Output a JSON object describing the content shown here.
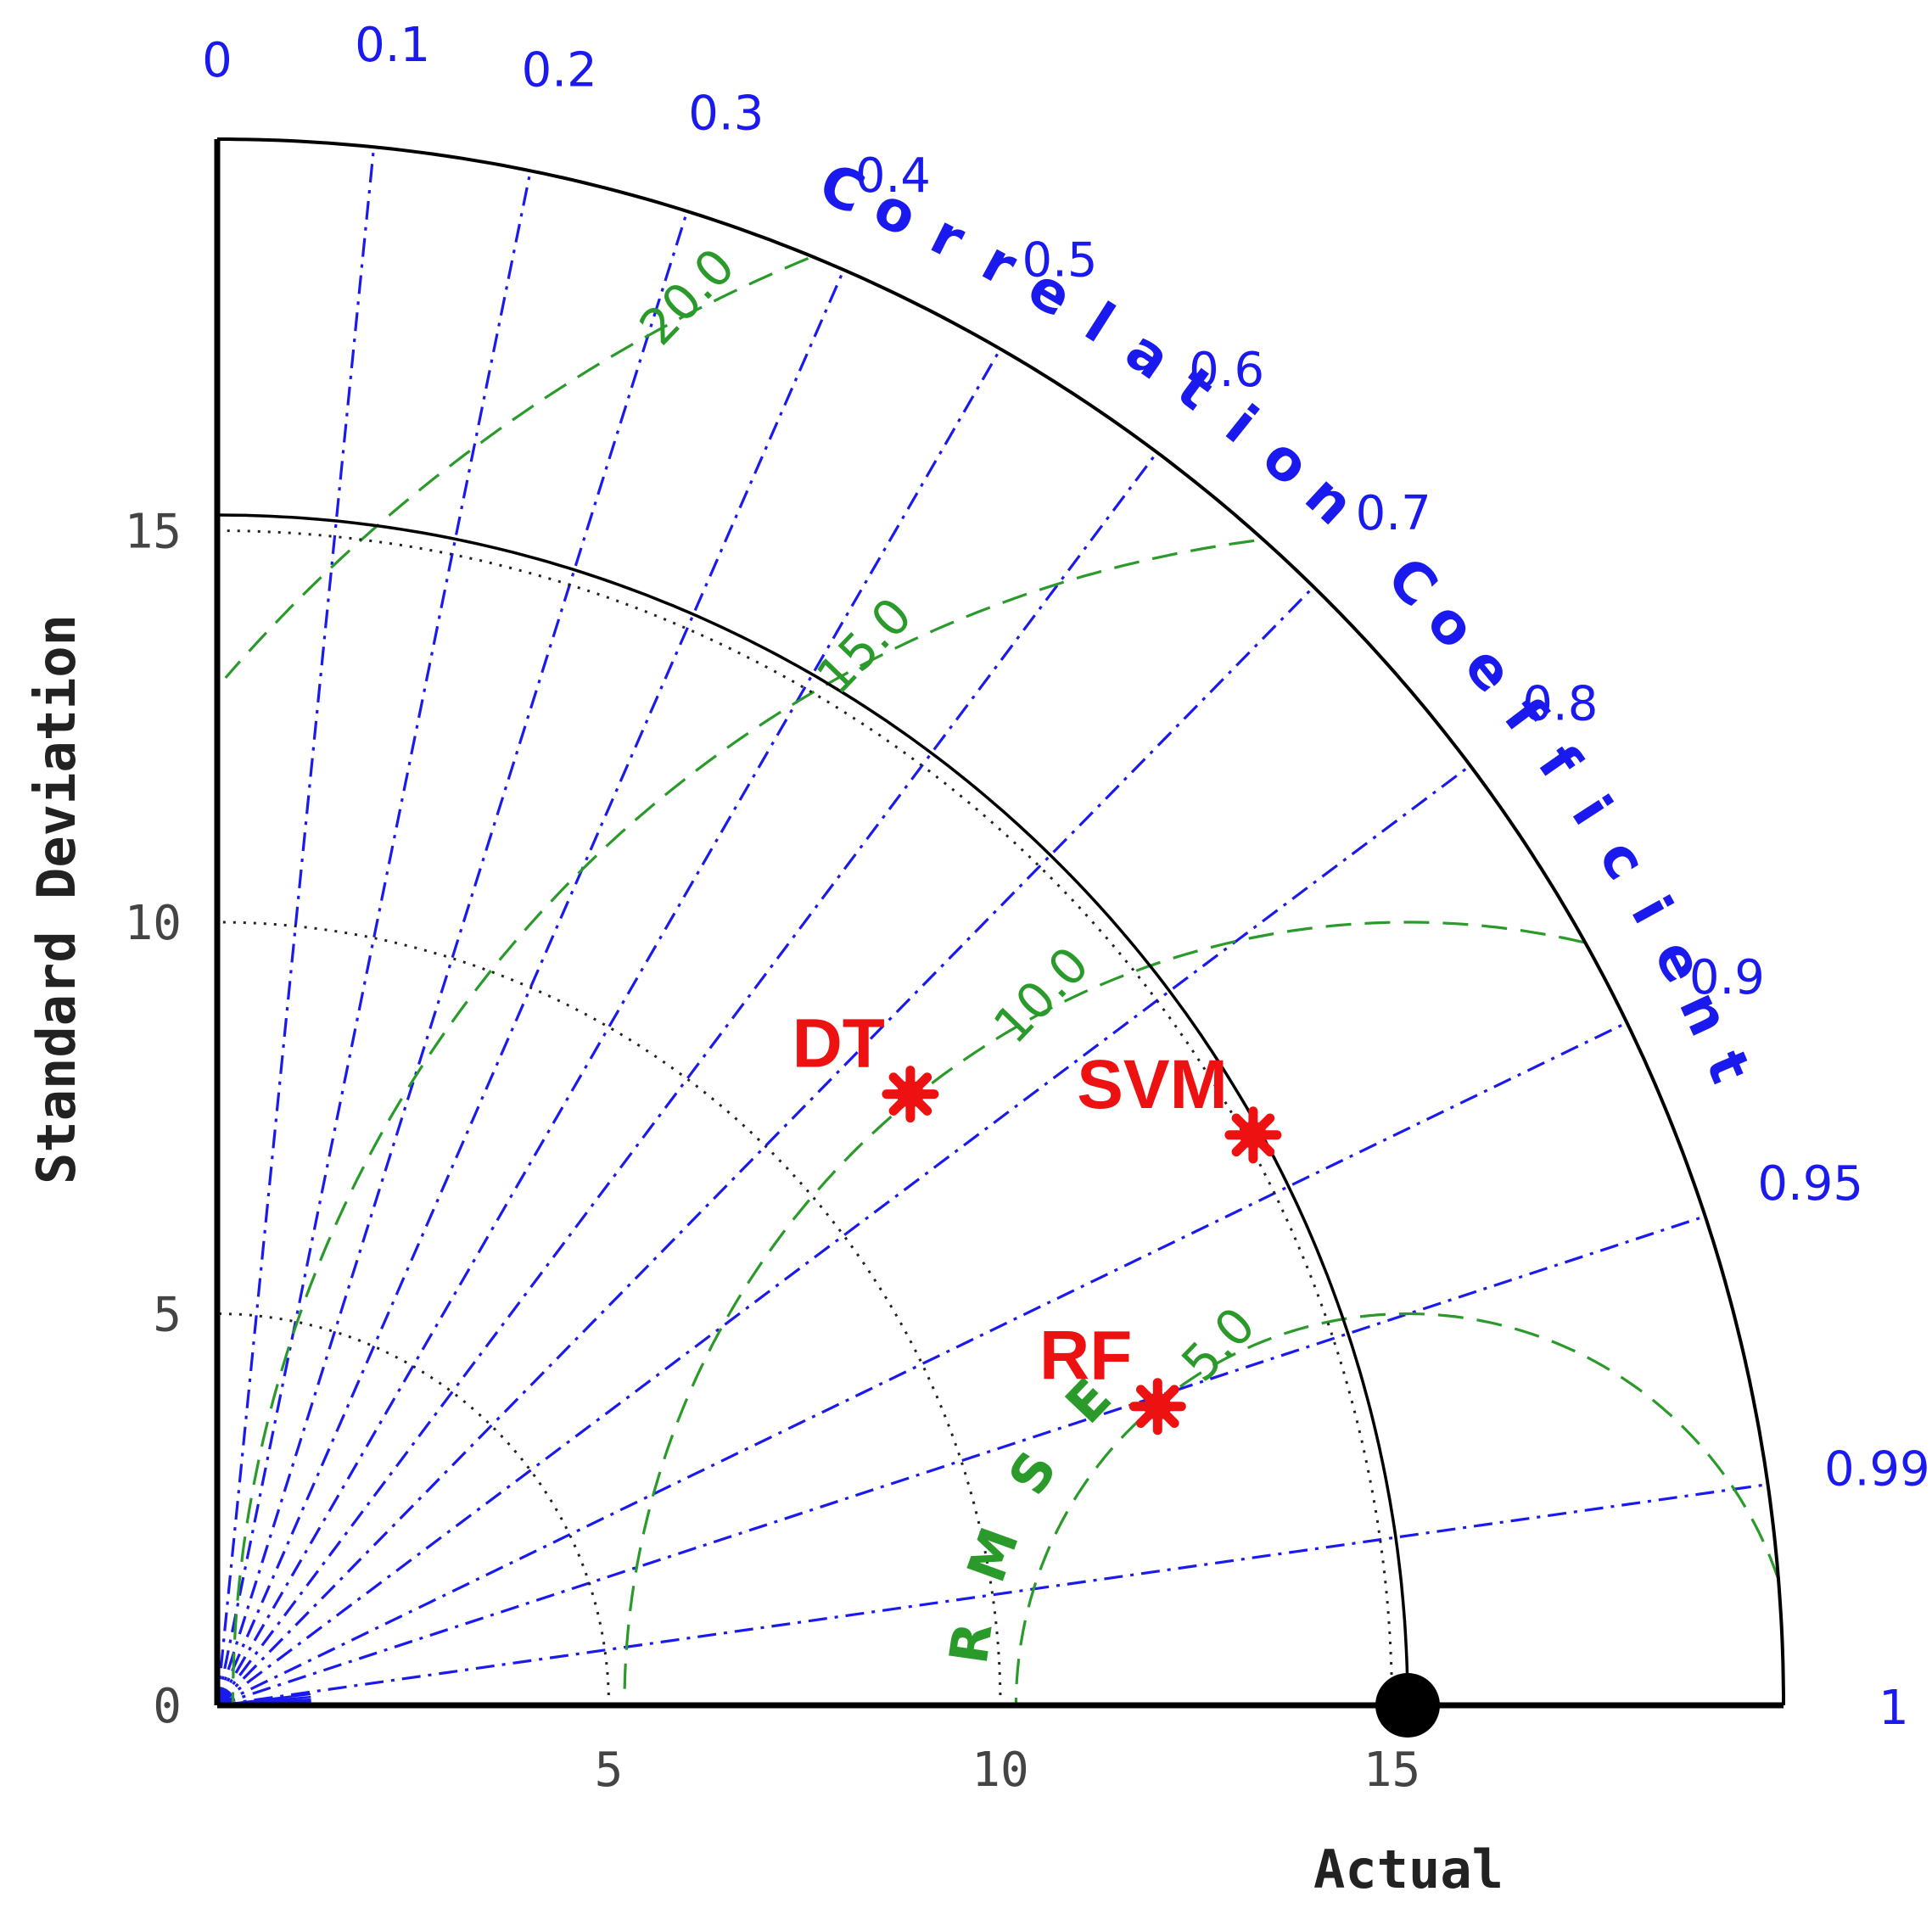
{
  "chart_data": {
    "type": "taylor",
    "xlabel": "Actual",
    "ylabel": "Standard Deviation",
    "correlation_label": "Correlation Coefficient",
    "rmse_label": "RMSE",
    "std_max": 20,
    "std_ticks": [
      0,
      5,
      10,
      15
    ],
    "correlation_ticks": [
      "0",
      "0.1",
      "0.2",
      "0.3",
      "0.4",
      "0.5",
      "0.6",
      "0.7",
      "0.8",
      "0.9",
      "0.95",
      "0.99",
      "1"
    ],
    "rmse_contours": [
      "5.0",
      "10.0",
      "15.0",
      "20.0"
    ],
    "reference": {
      "name": "Actual",
      "std": 15.2
    },
    "series": [
      {
        "name": "DT",
        "std": 11.8,
        "correlation": 0.75
      },
      {
        "name": "SVM",
        "std": 15.1,
        "correlation": 0.876
      },
      {
        "name": "RF",
        "std": 12.6,
        "correlation": 0.953
      }
    ],
    "colors": {
      "correlation": "#1a1aee",
      "rmse": "#2a9a2a",
      "model": "#ee1111",
      "reference": "#000000",
      "std_arcs": "#222222"
    }
  }
}
